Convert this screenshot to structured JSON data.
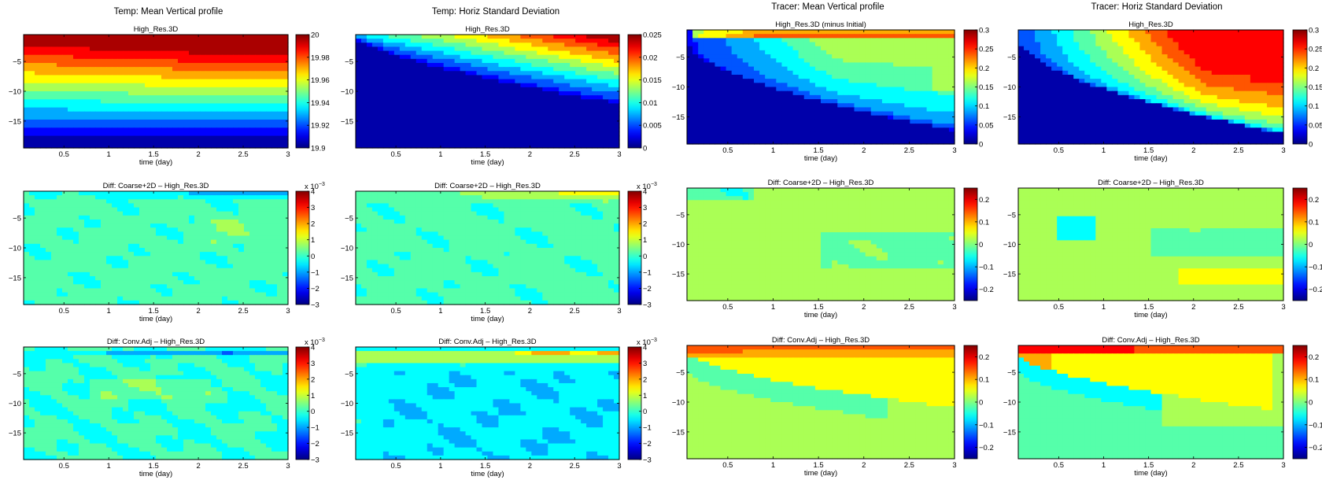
{
  "figure": {
    "column_titles": [
      "Temp: Mean Vertical profile",
      "Temp: Horiz Standard Deviation",
      "Tracer: Mean Vertical profile",
      "Tracer: Horiz Standard Deviation"
    ]
  },
  "chart_data": [
    {
      "type": "heatmap",
      "row": 0,
      "col": 0,
      "title": "High_Res.3D",
      "xlabel": "time (day)",
      "ylabel": "",
      "xlim": [
        0.05,
        3
      ],
      "ylim": [
        -19.5,
        -0.5
      ],
      "xticks": [
        "0.5",
        "1",
        "1.5",
        "2",
        "2.5",
        "3"
      ],
      "xtick_values": [
        0.5,
        1,
        1.5,
        2,
        2.5,
        3
      ],
      "yticks": [
        "-5",
        "-10",
        "-15"
      ],
      "ytick_values": [
        -5,
        -10,
        -15
      ],
      "colorbar": {
        "range": [
          19.9,
          20.0
        ],
        "ticks": [
          "19.9",
          "19.92",
          "19.94",
          "19.96",
          "19.98",
          "20"
        ],
        "tick_values": [
          19.9,
          19.92,
          19.94,
          19.96,
          19.98,
          20.0
        ],
        "exponent": ""
      },
      "description": "Horizontal stratified layers, warmest at surface (~20) to coolest at bottom (~19.9), contours tilting slightly upward over time",
      "field": "layers_temp_mean"
    },
    {
      "type": "heatmap",
      "row": 0,
      "col": 1,
      "title": "High_Res.3D",
      "xlabel": "time (day)",
      "ylabel": "",
      "xlim": [
        0.05,
        3
      ],
      "ylim": [
        -19.5,
        -0.5
      ],
      "xticks": [
        "0.5",
        "1",
        "1.5",
        "2",
        "2.5",
        "3"
      ],
      "xtick_values": [
        0.5,
        1,
        1.5,
        2,
        2.5,
        3
      ],
      "yticks": [
        "-5",
        "-10",
        "-15"
      ],
      "ytick_values": [
        -5,
        -10,
        -15
      ],
      "colorbar": {
        "range": [
          0,
          0.025
        ],
        "ticks": [
          "0",
          "0.005",
          "0.01",
          "0.015",
          "0.02",
          "0.025"
        ],
        "tick_values": [
          0,
          0.005,
          0.01,
          0.015,
          0.02,
          0.025
        ],
        "exponent": ""
      },
      "description": "Std deviation grows with time near surface, penetrating to ~-11 m by day 3",
      "field": "wedge_temp_std"
    },
    {
      "type": "heatmap",
      "row": 0,
      "col": 2,
      "title": "High_Res.3D (minus Initial)",
      "xlabel": "time (day)",
      "ylabel": "",
      "xlim": [
        0.05,
        3
      ],
      "ylim": [
        -19.5,
        -0.5
      ],
      "xticks": [
        "0.5",
        "1",
        "1.5",
        "2",
        "2.5",
        "3"
      ],
      "xtick_values": [
        0.5,
        1,
        1.5,
        2,
        2.5,
        3
      ],
      "yticks": [
        "-5",
        "-10",
        "-15"
      ],
      "ytick_values": [
        -5,
        -10,
        -15
      ],
      "colorbar": {
        "range": [
          0,
          0.3
        ],
        "ticks": [
          "0",
          "0.05",
          "0.1",
          "0.15",
          "0.2",
          "0.25",
          "0.3"
        ],
        "tick_values": [
          0,
          0.05,
          0.1,
          0.15,
          0.2,
          0.25,
          0.3
        ],
        "exponent": ""
      },
      "description": "Tracer spreads downward to ~-16 m by day 3; max near -1 m, plume ~0.15 at depth -5 to -11",
      "field": "wedge_tracer_mean"
    },
    {
      "type": "heatmap",
      "row": 0,
      "col": 3,
      "title": "High_Res.3D",
      "xlabel": "time (day)",
      "ylabel": "",
      "xlim": [
        0.05,
        3
      ],
      "ylim": [
        -19.5,
        -0.5
      ],
      "xticks": [
        "0.5",
        "1",
        "1.5",
        "2",
        "2.5",
        "3"
      ],
      "xtick_values": [
        0.5,
        1,
        1.5,
        2,
        2.5,
        3
      ],
      "yticks": [
        "-5",
        "-10",
        "-15"
      ],
      "ytick_values": [
        -5,
        -10,
        -15
      ],
      "colorbar": {
        "range": [
          0,
          0.3
        ],
        "ticks": [
          "0",
          "0.05",
          "0.1",
          "0.15",
          "0.2",
          "0.25",
          "0.3"
        ],
        "tick_values": [
          0,
          0.05,
          0.1,
          0.15,
          0.2,
          0.25,
          0.3
        ],
        "exponent": ""
      },
      "description": "Tracer std deviation wedge, red core (~0.25) from day 1, maximum ~0.3 near day 2.8 at -7 m",
      "field": "wedge_tracer_std"
    },
    {
      "type": "heatmap",
      "row": 1,
      "col": 0,
      "title": "Diff: Coarse+2D – High_Res.3D",
      "xlabel": "time (day)",
      "ylabel": "",
      "xlim": [
        0.05,
        3
      ],
      "ylim": [
        -19.5,
        -0.5
      ],
      "xticks": [
        "0.5",
        "1",
        "1.5",
        "2",
        "2.5",
        "3"
      ],
      "xtick_values": [
        0.5,
        1,
        1.5,
        2,
        2.5,
        3
      ],
      "yticks": [
        "-5",
        "-10",
        "-15"
      ],
      "ytick_values": [
        -5,
        -10,
        -15
      ],
      "colorbar": {
        "range": [
          -3,
          4
        ],
        "ticks": [
          "-3",
          "-2",
          "-1",
          "0",
          "1",
          "2",
          "3",
          "4"
        ],
        "tick_values": [
          -3,
          -2,
          -1,
          0,
          1,
          2,
          3,
          4
        ],
        "exponent": "x 10^-3"
      },
      "description": "Small differences near zero (~-0.5 to 0.5e-3), negative band at surface late times",
      "field": "diff_small_temp1"
    },
    {
      "type": "heatmap",
      "row": 1,
      "col": 1,
      "title": "Diff: Coarse+2D – High_Res.3D",
      "xlabel": "time (day)",
      "ylabel": "",
      "xlim": [
        0.05,
        3
      ],
      "ylim": [
        -19.5,
        -0.5
      ],
      "xticks": [
        "0.5",
        "1",
        "1.5",
        "2",
        "2.5",
        "3"
      ],
      "xtick_values": [
        0.5,
        1,
        1.5,
        2,
        2.5,
        3
      ],
      "yticks": [
        "-5",
        "-10",
        "-15"
      ],
      "ytick_values": [
        -5,
        -10,
        -15
      ],
      "colorbar": {
        "range": [
          -3,
          4
        ],
        "ticks": [
          "-3",
          "-2",
          "-1",
          "0",
          "1",
          "2",
          "3",
          "4"
        ],
        "tick_values": [
          -3,
          -2,
          -1,
          0,
          1,
          2,
          3,
          4
        ],
        "exponent": "x 10^-3"
      },
      "description": "Near-zero differences with positive (up to ~2e-3) surface band at late times",
      "field": "diff_small_temp2"
    },
    {
      "type": "heatmap",
      "row": 1,
      "col": 2,
      "title": "Diff: Coarse+2D – High_Res.3D",
      "xlabel": "time (day)",
      "ylabel": "",
      "xlim": [
        0.05,
        3
      ],
      "ylim": [
        -19.5,
        -0.5
      ],
      "xticks": [
        "0.5",
        "1",
        "1.5",
        "2",
        "2.5",
        "3"
      ],
      "xtick_values": [
        0.5,
        1,
        1.5,
        2,
        2.5,
        3
      ],
      "yticks": [
        "-5",
        "-10",
        "-15"
      ],
      "ytick_values": [
        -5,
        -10,
        -15
      ],
      "colorbar": {
        "range": [
          -0.25,
          0.25
        ],
        "ticks": [
          "-0.2",
          "-0.1",
          "0",
          "0.1",
          "0.2"
        ],
        "tick_values": [
          -0.2,
          -0.1,
          0,
          0.1,
          0.2
        ],
        "exponent": ""
      },
      "description": "Differences within about -0.07 to 0.04, banded structure",
      "field": "diff_tracer1"
    },
    {
      "type": "heatmap",
      "row": 1,
      "col": 3,
      "title": "Diff: Coarse+2D – High_Res.3D",
      "xlabel": "time (day)",
      "ylabel": "",
      "xlim": [
        0.05,
        3
      ],
      "ylim": [
        -19.5,
        -0.5
      ],
      "xticks": [
        "0.5",
        "1",
        "1.5",
        "2",
        "2.5",
        "3"
      ],
      "xtick_values": [
        0.5,
        1,
        1.5,
        2,
        2.5,
        3
      ],
      "yticks": [
        "-5",
        "-10",
        "-15"
      ],
      "ytick_values": [
        -5,
        -10,
        -15
      ],
      "colorbar": {
        "range": [
          -0.25,
          0.25
        ],
        "ticks": [
          "-0.2",
          "-0.1",
          "0",
          "0.1",
          "0.2"
        ],
        "tick_values": [
          -0.2,
          -0.1,
          0,
          0.1,
          0.2
        ],
        "exponent": ""
      },
      "description": "Differences within about -0.1 to 0.05",
      "field": "diff_tracer2"
    },
    {
      "type": "heatmap",
      "row": 2,
      "col": 0,
      "title": "Diff: Conv.Adj – High_Res.3D",
      "xlabel": "time (day)",
      "ylabel": "",
      "xlim": [
        0.05,
        3
      ],
      "ylim": [
        -19.5,
        -0.5
      ],
      "xticks": [
        "0.5",
        "1",
        "1.5",
        "2",
        "2.5",
        "3"
      ],
      "xtick_values": [
        0.5,
        1,
        1.5,
        2,
        2.5,
        3
      ],
      "yticks": [
        "-5",
        "-10",
        "-15"
      ],
      "ytick_values": [
        -5,
        -10,
        -15
      ],
      "colorbar": {
        "range": [
          -3,
          4
        ],
        "ticks": [
          "-3",
          "-2",
          "-1",
          "0",
          "1",
          "2",
          "3",
          "4"
        ],
        "tick_values": [
          -3,
          -2,
          -1,
          0,
          1,
          2,
          3,
          4
        ],
        "exponent": "x 10^-3"
      },
      "description": "Near-zero differences, negative band (~-1.5e-3) at surface",
      "field": "diff_small_temp3"
    },
    {
      "type": "heatmap",
      "row": 2,
      "col": 1,
      "title": "Diff: Conv.Adj – High_Res.3D",
      "xlabel": "time (day)",
      "ylabel": "",
      "xlim": [
        0.05,
        3
      ],
      "ylim": [
        -19.5,
        -0.5
      ],
      "xticks": [
        "0.5",
        "1",
        "1.5",
        "2",
        "2.5",
        "3"
      ],
      "xtick_values": [
        0.5,
        1,
        1.5,
        2,
        2.5,
        3
      ],
      "yticks": [
        "-5",
        "-10",
        "-15"
      ],
      "ytick_values": [
        -5,
        -10,
        -15
      ],
      "colorbar": {
        "range": [
          -3,
          4
        ],
        "ticks": [
          "-3",
          "-2",
          "-1",
          "0",
          "1",
          "2",
          "3",
          "4"
        ],
        "tick_values": [
          -3,
          -2,
          -1,
          0,
          1,
          2,
          3,
          4
        ],
        "exponent": "x 10^-3"
      },
      "description": "Positive band near surface (~1-2e-3), broad negative (~-1e-3) regions below",
      "field": "diff_small_temp4"
    },
    {
      "type": "heatmap",
      "row": 2,
      "col": 2,
      "title": "Diff: Conv.Adj – High_Res.3D",
      "xlabel": "time (day)",
      "ylabel": "",
      "xlim": [
        0.05,
        3
      ],
      "ylim": [
        -19.5,
        -0.5
      ],
      "xticks": [
        "0.5",
        "1",
        "1.5",
        "2",
        "2.5",
        "3"
      ],
      "xtick_values": [
        0.5,
        1,
        1.5,
        2,
        2.5,
        3
      ],
      "yticks": [
        "-5",
        "-10",
        "-15"
      ],
      "ytick_values": [
        -5,
        -10,
        -15
      ],
      "colorbar": {
        "range": [
          -0.25,
          0.25
        ],
        "ticks": [
          "-0.2",
          "-0.1",
          "0",
          "0.1",
          "0.2"
        ],
        "tick_values": [
          -0.2,
          -0.1,
          0,
          0.1,
          0.2
        ],
        "exponent": ""
      },
      "description": "Positive (~0.05-0.15) surface layer, negative tongue (~-0.07) sloping down to -12 m",
      "field": "diff_tracer3"
    },
    {
      "type": "heatmap",
      "row": 2,
      "col": 3,
      "title": "Diff: Conv.Adj – High_Res.3D",
      "xlabel": "time (day)",
      "ylabel": "",
      "xlim": [
        0.05,
        3
      ],
      "ylim": [
        -19.5,
        -0.5
      ],
      "xticks": [
        "0.5",
        "1",
        "1.5",
        "2",
        "2.5",
        "3"
      ],
      "xtick_values": [
        0.5,
        1,
        1.5,
        2,
        2.5,
        3
      ],
      "yticks": [
        "-5",
        "-10",
        "-15"
      ],
      "ytick_values": [
        -5,
        -10,
        -15
      ],
      "colorbar": {
        "range": [
          -0.25,
          0.25
        ],
        "ticks": [
          "-0.2",
          "-0.1",
          "0",
          "0.1",
          "0.2"
        ],
        "tick_values": [
          -0.2,
          -0.1,
          0,
          0.1,
          0.2
        ],
        "exponent": ""
      },
      "description": "Strong positive (>0.2) near surface early, yellow region ~0.05, negative ~-0.05 below the wedge",
      "field": "diff_tracer4"
    }
  ]
}
